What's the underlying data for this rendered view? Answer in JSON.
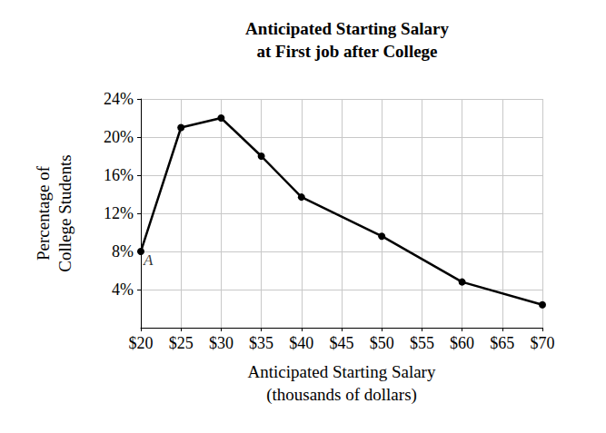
{
  "chart_data": {
    "type": "line",
    "title": "Anticipated Starting Salary\nat First job after College",
    "xlabel": "Anticipated Starting Salary\n(thousands of dollars)",
    "ylabel": "Percentage of\nCollege Students",
    "x": [
      20,
      25,
      30,
      35,
      40,
      50,
      60,
      70
    ],
    "values": [
      8,
      21,
      22,
      18,
      13.7,
      9.6,
      4.8,
      2.4
    ],
    "color": "#000000",
    "marker": "circle",
    "line_style": "solid",
    "xlim": [
      20,
      70
    ],
    "xticks": [
      {
        "value": 20,
        "label": "$20"
      },
      {
        "value": 25,
        "label": "$25"
      },
      {
        "value": 30,
        "label": "$30"
      },
      {
        "value": 35,
        "label": "$35"
      },
      {
        "value": 40,
        "label": "$40"
      },
      {
        "value": 45,
        "label": "$45"
      },
      {
        "value": 50,
        "label": "$50"
      },
      {
        "value": 55,
        "label": "$55"
      },
      {
        "value": 60,
        "label": "$60"
      },
      {
        "value": 65,
        "label": "$65"
      },
      {
        "value": 70,
        "label": "$70"
      }
    ],
    "ylim": [
      0,
      24
    ],
    "yticks": [
      {
        "value": 4,
        "label": "4%"
      },
      {
        "value": 8,
        "label": "8%"
      },
      {
        "value": 12,
        "label": "12%"
      },
      {
        "value": 16,
        "label": "16%"
      },
      {
        "value": 20,
        "label": "20%"
      },
      {
        "value": 24,
        "label": "24%"
      }
    ],
    "grid": true,
    "annotations": [
      {
        "text": "A",
        "x": 20,
        "y": 8
      }
    ]
  }
}
